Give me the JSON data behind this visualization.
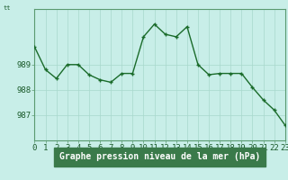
{
  "x": [
    0,
    1,
    2,
    3,
    4,
    5,
    6,
    7,
    8,
    9,
    10,
    11,
    12,
    13,
    14,
    15,
    16,
    17,
    18,
    19,
    20,
    21,
    22,
    23
  ],
  "y": [
    989.7,
    988.8,
    988.45,
    989.0,
    989.0,
    988.6,
    988.4,
    988.3,
    988.65,
    988.65,
    990.1,
    990.6,
    990.2,
    990.1,
    990.5,
    989.0,
    988.6,
    988.65,
    988.65,
    988.65,
    988.1,
    987.6,
    987.2,
    986.6
  ],
  "line_color": "#1a6b2a",
  "marker_color": "#1a6b2a",
  "bg_color": "#c8eee8",
  "grid_color": "#a8d8cc",
  "bottom_bar_color": "#3a7a4a",
  "xlabel": "Graphe pression niveau de la mer (hPa)",
  "yticks": [
    987,
    988,
    989
  ],
  "ylim": [
    986.0,
    991.2
  ],
  "xlim": [
    0,
    23
  ],
  "xlabel_fontsize": 7,
  "tick_fontsize": 6.5,
  "line_width": 1.0,
  "marker_size": 3.5
}
